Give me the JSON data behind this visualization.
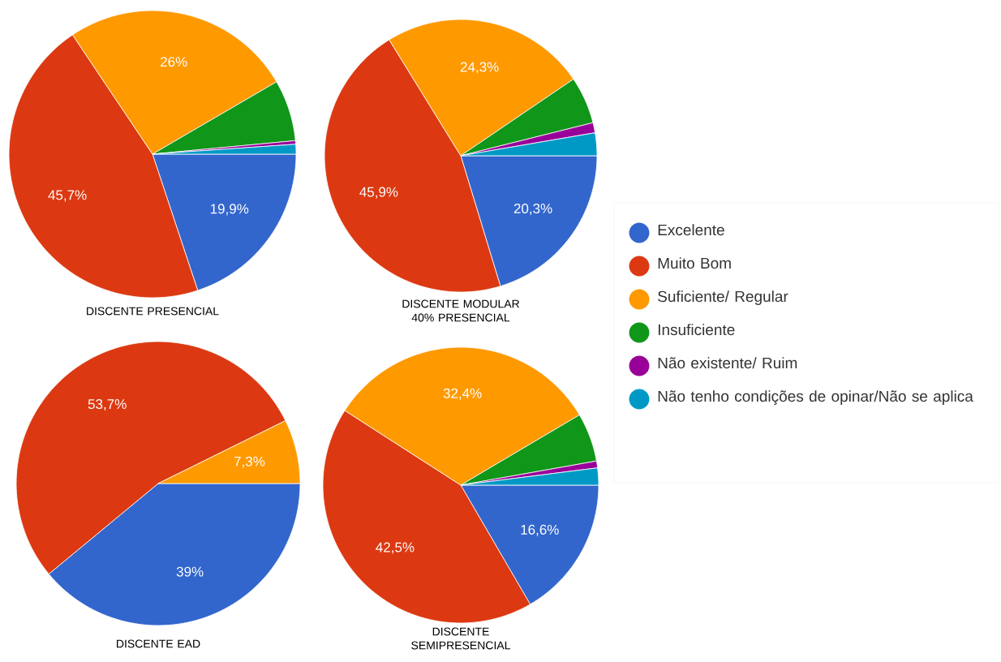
{
  "chart_data": [
    {
      "type": "pie",
      "title": "DISCENTE PRESENCIAL",
      "categories": [
        null,
        null,
        null,
        null,
        null,
        null
      ],
      "values": [
        19.9,
        45.7,
        26,
        6.9,
        0.4,
        1.1
      ],
      "value_labels": [
        "19,9%",
        "45,7%",
        "26%",
        null,
        null,
        null
      ],
      "colors": [
        "#3366cc",
        "#dc3912",
        "#ff9900",
        "#109618",
        "#990099",
        "#0099c6"
      ]
    },
    {
      "type": "pie",
      "title": "DISCENTE MODULAR 40% PRESENCIAL",
      "categories": [
        "Excelente",
        "Muito Bom",
        "Suficiente/ Regular",
        "Insuficiente",
        "Não existente/ Ruim",
        "Não tenho condições de opinar/Não se aplica"
      ],
      "values": [
        20.3,
        45.9,
        24.3,
        5.6,
        1.2,
        2.7
      ],
      "value_labels": [
        "20,3%",
        "45,9%",
        "24,3%",
        null,
        null,
        null
      ],
      "colors": [
        "#3366cc",
        "#dc3912",
        "#ff9900",
        "#109618",
        "#990099",
        "#0099c6"
      ],
      "legend": "right"
    },
    {
      "type": "pie",
      "title": "DISCENTE EAD",
      "categories": [
        null,
        null,
        null,
        null,
        null,
        null
      ],
      "values": [
        39,
        53.7,
        7.3,
        0,
        0,
        0
      ],
      "value_labels": [
        "39%",
        "53,7%",
        "7,3%",
        null,
        null,
        null
      ],
      "colors": [
        "#3366cc",
        "#dc3912",
        "#ff9900",
        "#109618",
        "#990099",
        "#0099c6"
      ]
    },
    {
      "type": "pie",
      "title": "DISCENTE SEMIPRESENCIAL",
      "categories": [
        null,
        null,
        null,
        null,
        null,
        null
      ],
      "values": [
        16.6,
        42.5,
        32.4,
        5.7,
        0.8,
        2.0
      ],
      "value_labels": [
        "16,6%",
        "42,5%",
        "32,4%",
        null,
        null,
        null
      ],
      "colors": [
        "#3366cc",
        "#dc3912",
        "#ff9900",
        "#109618",
        "#990099",
        "#0099c6"
      ]
    }
  ]
}
